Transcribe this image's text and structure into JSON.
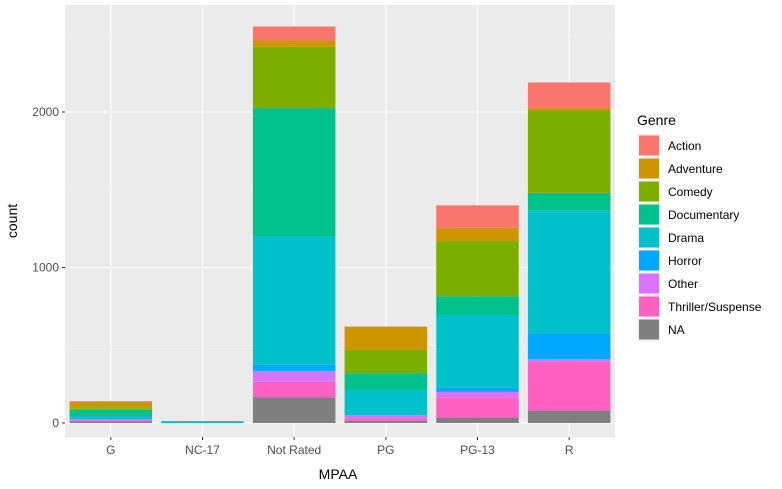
{
  "chart_data": {
    "type": "bar",
    "stacked": true,
    "xlabel": "MPAA",
    "ylabel": "count",
    "ylim": [
      0,
      2600
    ],
    "yticks": [
      0,
      1000,
      2000
    ],
    "grid": true,
    "legend_position": "right",
    "legend_title": "Genre",
    "categories": [
      "G",
      "NC-17",
      "Not Rated",
      "PG",
      "PG-13",
      "R"
    ],
    "series": [
      {
        "name": "NA",
        "color": "#7F7F7F",
        "values": [
          10,
          0,
          165,
          15,
          35,
          80
        ]
      },
      {
        "name": "Thriller/Suspense",
        "color": "#FF61C3",
        "values": [
          0,
          0,
          100,
          15,
          130,
          315
        ]
      },
      {
        "name": "Other",
        "color": "#DB72FB",
        "values": [
          15,
          0,
          70,
          20,
          35,
          15
        ]
      },
      {
        "name": "Horror",
        "color": "#00A9FF",
        "values": [
          0,
          0,
          40,
          0,
          30,
          165
        ]
      },
      {
        "name": "Drama",
        "color": "#00C1C9",
        "values": [
          20,
          12,
          825,
          165,
          465,
          790
        ]
      },
      {
        "name": "Documentary",
        "color": "#00C08B",
        "values": [
          40,
          0,
          825,
          105,
          120,
          115
        ]
      },
      {
        "name": "Comedy",
        "color": "#7CAE00",
        "values": [
          10,
          0,
          395,
          150,
          355,
          530
        ]
      },
      {
        "name": "Adventure",
        "color": "#CD9600",
        "values": [
          40,
          0,
          40,
          150,
          85,
          15
        ]
      },
      {
        "name": "Action",
        "color": "#F8766D",
        "values": [
          5,
          0,
          90,
          0,
          145,
          165
        ]
      }
    ],
    "legend_order": [
      "Action",
      "Adventure",
      "Comedy",
      "Documentary",
      "Drama",
      "Horror",
      "Other",
      "Thriller/Suspense",
      "NA"
    ]
  },
  "colors": {
    "panel_background": "#EBEBEB",
    "grid_major": "#FFFFFF"
  }
}
